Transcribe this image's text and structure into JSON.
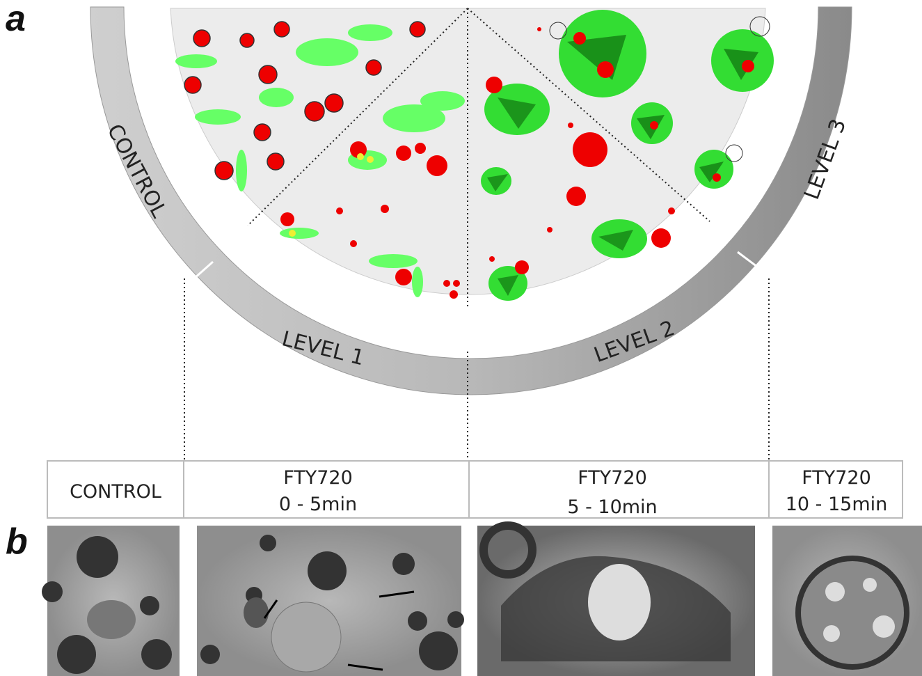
{
  "panels": {
    "a": "a",
    "b": "b"
  },
  "ring": {
    "labels": [
      "CONTROL",
      "LEVEL 1",
      "LEVEL 2",
      "LEVEL 3"
    ]
  },
  "table": {
    "cells": [
      [
        "CONTROL"
      ],
      [
        "FTY720",
        "0  -  5min"
      ],
      [
        "FTY720",
        "5  -  10min"
      ],
      [
        "FTY720",
        "10  -  15min"
      ]
    ]
  }
}
